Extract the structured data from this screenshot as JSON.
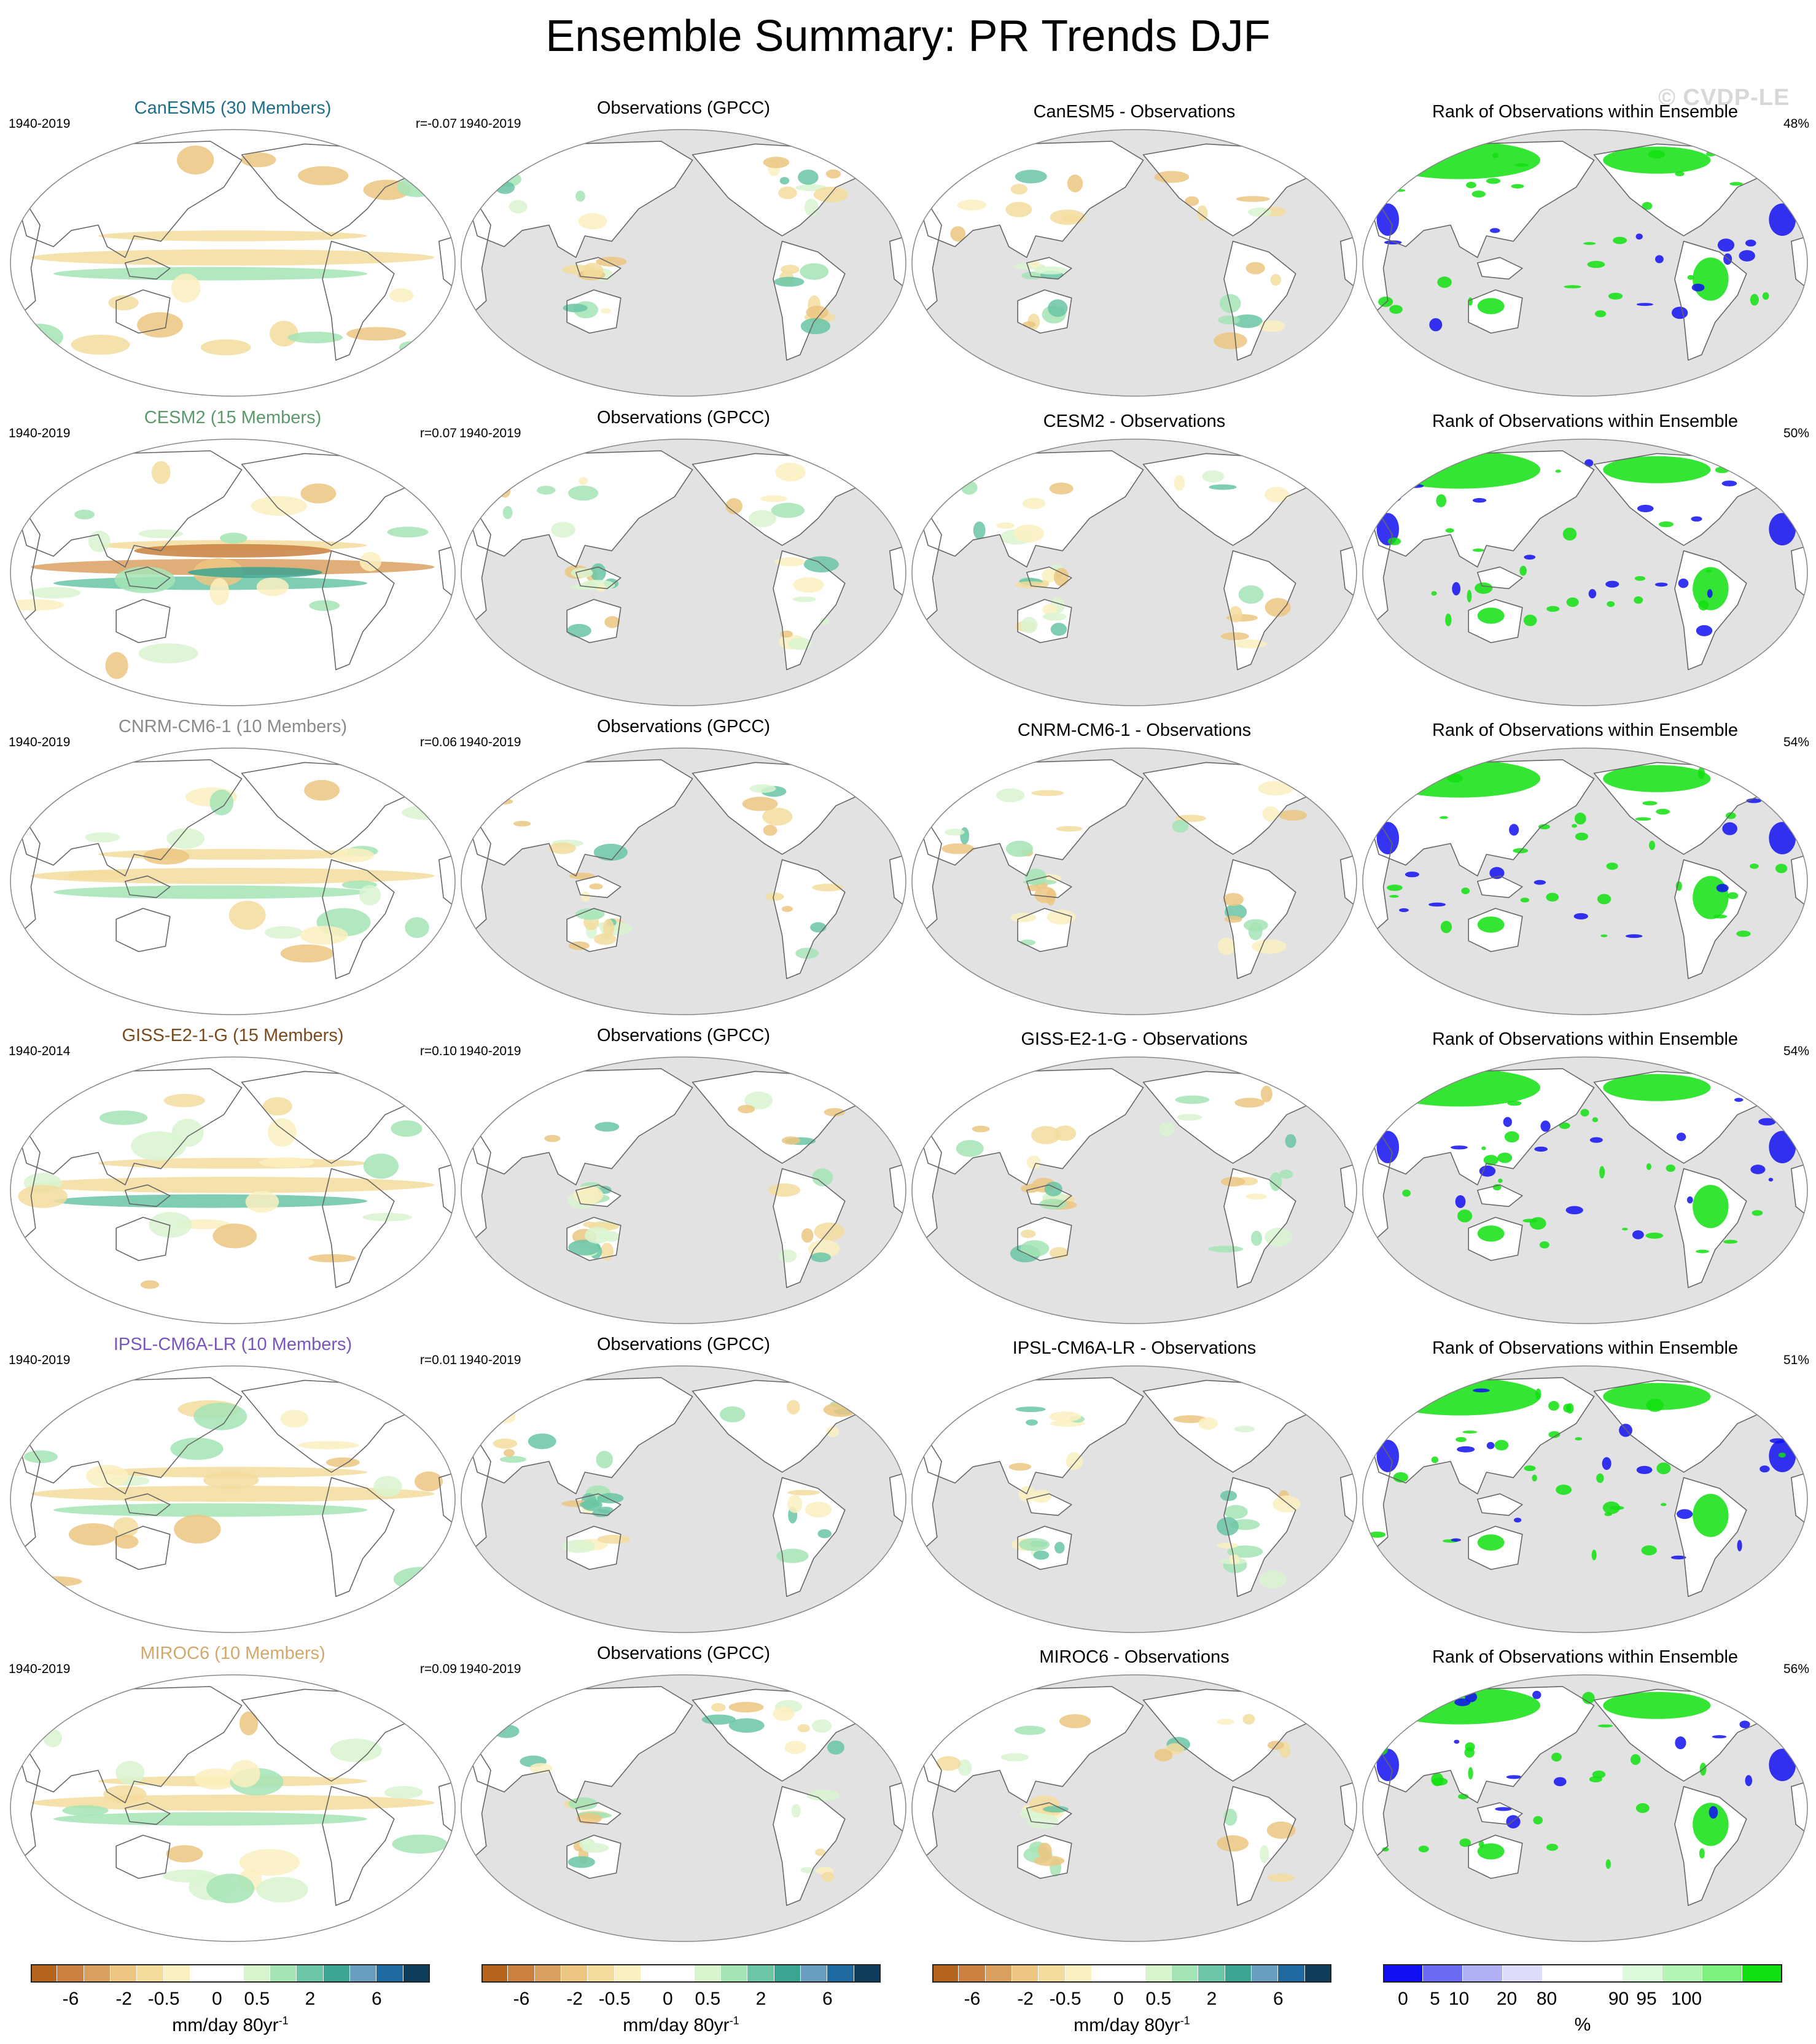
{
  "title": "Ensemble Summary: PR Trends DJF",
  "watermark": "© CVDP-LE",
  "rows": [
    {
      "model": "CanESM5 (30 Members)",
      "model_color": "#1e6e8c",
      "period": "1940-2019",
      "r": "r=-0.07",
      "obs_title": "Observations (GPCC)",
      "obs_period": "1940-2019",
      "diff_title": "CanESM5 - Observations",
      "rank_title": "Rank of Observations within Ensemble",
      "rank_pct": "48%"
    },
    {
      "model": "CESM2 (15 Members)",
      "model_color": "#5a9a6a",
      "period": "1940-2019",
      "r": "r=0.07",
      "obs_title": "Observations (GPCC)",
      "obs_period": "1940-2019",
      "diff_title": "CESM2 - Observations",
      "rank_title": "Rank of Observations within Ensemble",
      "rank_pct": "50%"
    },
    {
      "model": "CNRM-CM6-1 (10 Members)",
      "model_color": "#8a8a8a",
      "period": "1940-2019",
      "r": "r=0.06",
      "obs_title": "Observations (GPCC)",
      "obs_period": "1940-2019",
      "diff_title": "CNRM-CM6-1 - Observations",
      "rank_title": "Rank of Observations within Ensemble",
      "rank_pct": "54%"
    },
    {
      "model": "GISS-E2-1-G (15 Members)",
      "model_color": "#7a4a1e",
      "period": "1940-2014",
      "r": "r=0.10",
      "obs_title": "Observations (GPCC)",
      "obs_period": "1940-2019",
      "diff_title": "GISS-E2-1-G - Observations",
      "rank_title": "Rank of Observations within Ensemble",
      "rank_pct": "54%"
    },
    {
      "model": "IPSL-CM6A-LR (10 Members)",
      "model_color": "#7a55c0",
      "period": "1940-2019",
      "r": "r=0.01",
      "obs_title": "Observations (GPCC)",
      "obs_period": "1940-2019",
      "diff_title": "IPSL-CM6A-LR - Observations",
      "rank_title": "Rank of Observations within Ensemble",
      "rank_pct": "51%"
    },
    {
      "model": "MIROC6 (10 Members)",
      "model_color": "#d4a86a",
      "period": "1940-2019",
      "r": "r=0.09",
      "obs_title": "Observations (GPCC)",
      "obs_period": "1940-2019",
      "diff_title": "MIROC6 - Observations",
      "rank_title": "Rank of Observations within Ensemble",
      "rank_pct": "56%"
    }
  ],
  "colorbars": {
    "trend": {
      "colors": [
        "#b5651d",
        "#c98040",
        "#dba060",
        "#ecc580",
        "#f3dc9c",
        "#fbf0c0",
        "#ffffff",
        "#ffffff",
        "#d8f5d0",
        "#a5e4b5",
        "#6ac6a4",
        "#3aa590",
        "#6a9ec0",
        "#1f6aa0",
        "#0e3c5c"
      ],
      "ticks": [
        "-6",
        "-2",
        "-0.5",
        "0",
        "0.5",
        "2",
        "6"
      ],
      "unit": "mm/day 80yr",
      "unit_sup": "-1"
    },
    "rank": {
      "colors": [
        "#1010f0",
        "#6a6af5",
        "#b0b0f5",
        "#dcdcf8",
        "#ffffff",
        "#ffffff",
        "#dcfadc",
        "#b4f5b4",
        "#7ef07e",
        "#10e010"
      ],
      "ticks": [
        "0",
        "5",
        "10",
        "20",
        "80",
        "90",
        "95",
        "100"
      ],
      "unit": "%"
    }
  },
  "chart_data": {
    "type": "heatmap",
    "title": "Ensemble Summary: PR Trends DJF",
    "variable": "PR trends, DJF",
    "projection": "Robinson, Pacific-centered",
    "columns": [
      "model ensemble-mean trend",
      "Observations (GPCC)",
      "model - observations",
      "Rank of Observations within Ensemble"
    ],
    "trend_levels": [
      -6,
      -2,
      -0.5,
      0,
      0.5,
      2,
      6
    ],
    "trend_units": "mm/day 80yr-1",
    "rank_levels": [
      0,
      5,
      10,
      20,
      80,
      90,
      95,
      100
    ],
    "rank_units": "%",
    "series": [
      {
        "name": "CanESM5 (30 Members)",
        "period": "1940-2019",
        "r": -0.07,
        "rank_pct": 48
      },
      {
        "name": "CESM2 (15 Members)",
        "period": "1940-2019",
        "r": 0.07,
        "rank_pct": 50
      },
      {
        "name": "CNRM-CM6-1 (10 Members)",
        "period": "1940-2019",
        "r": 0.06,
        "rank_pct": 54
      },
      {
        "name": "GISS-E2-1-G (15 Members)",
        "period": "1940-2014",
        "r": 0.1,
        "rank_pct": 54
      },
      {
        "name": "IPSL-CM6A-LR (10 Members)",
        "period": "1940-2019",
        "r": 0.01,
        "rank_pct": 51
      },
      {
        "name": "MIROC6 (10 Members)",
        "period": "1940-2019",
        "r": 0.09,
        "rank_pct": 56
      }
    ]
  }
}
